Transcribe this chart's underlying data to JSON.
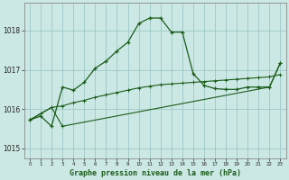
{
  "title": "Graphe pression niveau de la mer (hPa)",
  "bg_color": "#cce8e4",
  "grid_color": "#9dc8c8",
  "line_color": "#1a5c1a",
  "xlim": [
    -0.5,
    23.5
  ],
  "ylim": [
    1014.75,
    1018.7
  ],
  "yticks": [
    1015,
    1016,
    1017,
    1018
  ],
  "xticks": [
    0,
    1,
    2,
    3,
    4,
    5,
    6,
    7,
    8,
    9,
    10,
    11,
    12,
    13,
    14,
    15,
    16,
    17,
    18,
    19,
    20,
    21,
    22,
    23
  ],
  "s1_x": [
    0,
    1,
    2,
    3,
    4,
    5,
    6,
    7,
    8,
    9,
    10,
    11,
    12,
    13,
    14,
    15,
    16,
    17,
    18,
    19,
    20,
    21,
    22,
    23
  ],
  "s1_y": [
    1015.72,
    1015.88,
    1016.04,
    1016.08,
    1016.16,
    1016.22,
    1016.3,
    1016.36,
    1016.42,
    1016.48,
    1016.54,
    1016.58,
    1016.62,
    1016.64,
    1016.66,
    1016.68,
    1016.7,
    1016.72,
    1016.74,
    1016.76,
    1016.78,
    1016.8,
    1016.82,
    1016.88
  ],
  "s2_x": [
    0,
    1,
    2,
    3,
    4,
    5,
    6,
    7,
    8,
    9,
    10,
    11,
    12,
    13,
    14,
    15,
    16,
    17,
    18,
    19,
    20,
    21,
    22,
    23
  ],
  "s2_y": [
    1015.72,
    1015.82,
    1015.56,
    1016.56,
    1016.48,
    1016.68,
    1017.04,
    1017.22,
    1017.48,
    1017.7,
    1018.18,
    1018.32,
    1018.32,
    1017.96,
    1017.96,
    1016.9,
    1016.6,
    1016.52,
    1016.5,
    1016.5,
    1016.56,
    1016.56,
    1016.56,
    1017.18
  ],
  "s3_x": [
    0,
    1,
    2,
    3,
    22,
    23
  ],
  "s3_y": [
    1015.72,
    1015.88,
    1016.04,
    1015.56,
    1016.56,
    1017.18
  ]
}
